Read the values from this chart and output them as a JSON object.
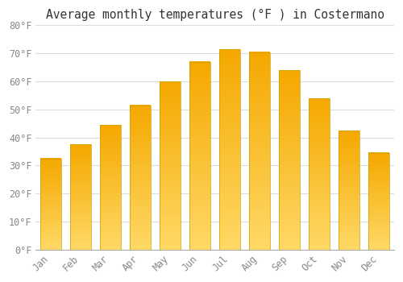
{
  "title": "Average monthly temperatures (°F ) in Costermano",
  "months": [
    "Jan",
    "Feb",
    "Mar",
    "Apr",
    "May",
    "Jun",
    "Jul",
    "Aug",
    "Sep",
    "Oct",
    "Nov",
    "Dec"
  ],
  "values": [
    32.5,
    37.5,
    44.5,
    51.5,
    60.0,
    67.0,
    71.5,
    70.5,
    64.0,
    54.0,
    42.5,
    34.5
  ],
  "bar_color_dark": "#F5A800",
  "bar_color_light": "#FFD966",
  "bar_edge_color": "#C8A000",
  "ylim": [
    0,
    80
  ],
  "yticks": [
    0,
    10,
    20,
    30,
    40,
    50,
    60,
    70,
    80
  ],
  "background_color": "#FFFFFF",
  "grid_color": "#DDDDDD",
  "title_fontsize": 10.5,
  "tick_fontsize": 8.5,
  "bar_width": 0.7
}
